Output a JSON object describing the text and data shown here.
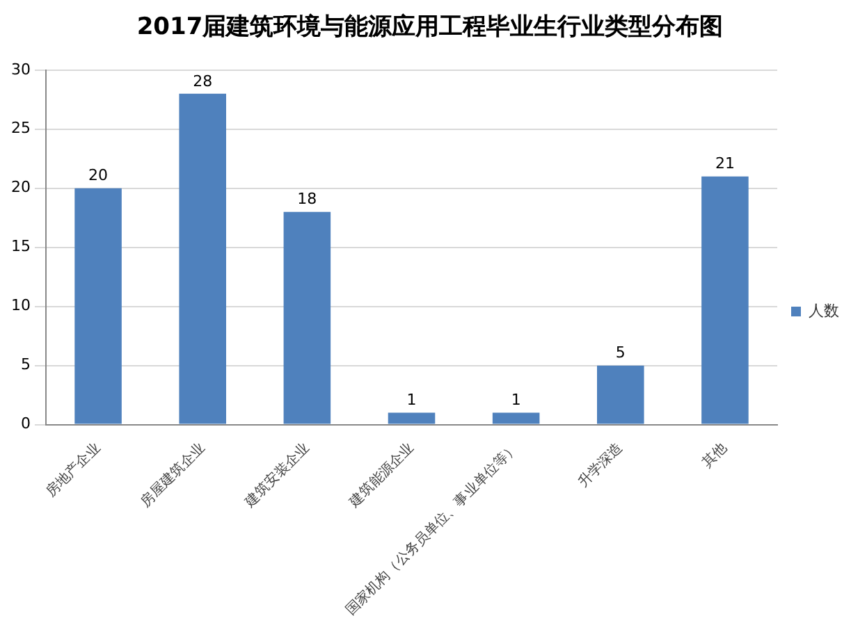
{
  "chart_data": {
    "type": "bar",
    "title": "2017届建筑环境与能源应用工程毕业生行业类型分布图",
    "categories": [
      "房地产企业",
      "房屋建筑企业",
      "建筑安装企业",
      "建筑能源企业",
      "国家机构（公务员单位、事业单位等）",
      "升学深造",
      "其他"
    ],
    "series": [
      {
        "name": "人数",
        "color": "#4f81bd",
        "values": [
          20,
          28,
          18,
          1,
          1,
          5,
          21
        ]
      }
    ],
    "ylim": [
      0,
      30
    ],
    "yticks": [
      0,
      5,
      10,
      15,
      20,
      25,
      30
    ],
    "grid": "y",
    "legend": "right",
    "data_labels": true
  }
}
